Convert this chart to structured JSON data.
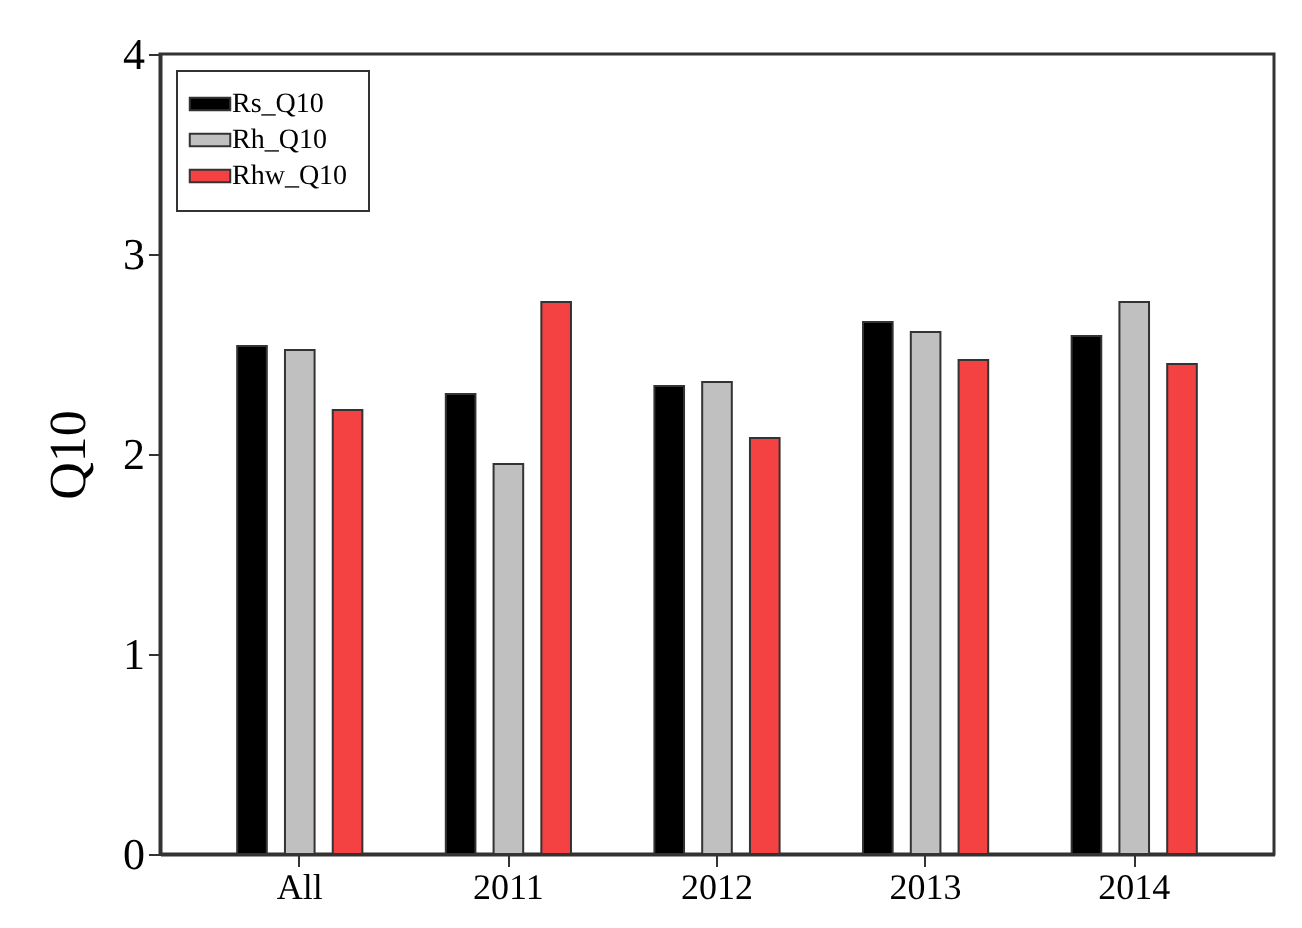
{
  "chart_data": {
    "type": "bar",
    "ylabel": "Q10",
    "categories": [
      "All",
      "2011",
      "2012",
      "2013",
      "2014"
    ],
    "series": [
      {
        "name": "Rs_Q10",
        "color": "#000000",
        "values": [
          2.54,
          2.3,
          2.34,
          2.66,
          2.59
        ]
      },
      {
        "name": "Rh_Q10",
        "color": "#c0c0c0",
        "values": [
          2.52,
          1.95,
          2.36,
          2.61,
          2.76
        ]
      },
      {
        "name": "Rhw_Q10",
        "color": "#f44242",
        "values": [
          2.22,
          2.76,
          2.08,
          2.47,
          2.45
        ]
      }
    ],
    "ylim": [
      0,
      4
    ],
    "yticks": [
      0,
      1,
      2,
      3,
      4
    ],
    "grid": false,
    "legend": "top left"
  }
}
